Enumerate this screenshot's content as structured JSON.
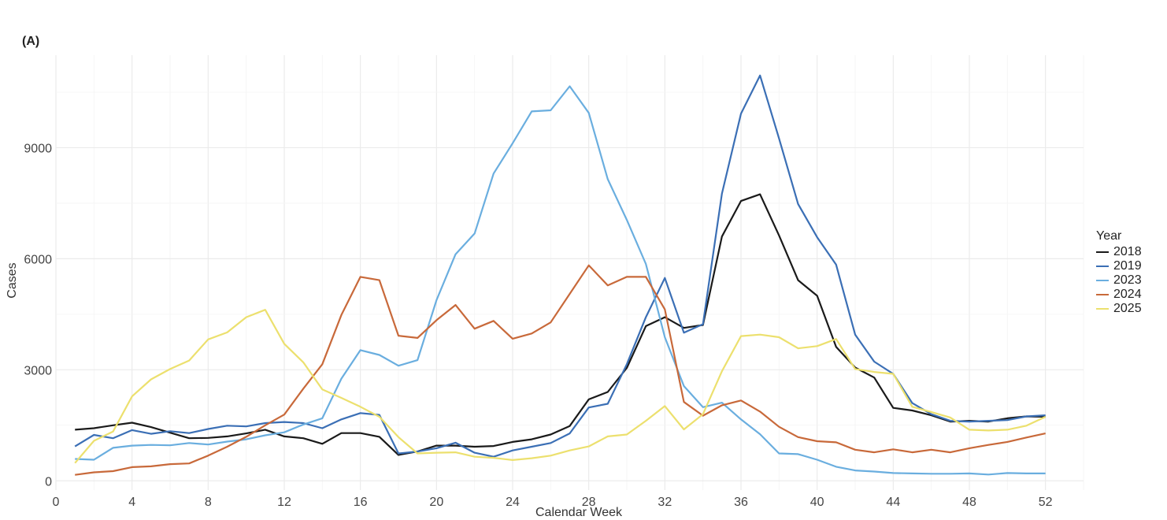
{
  "chart_data": {
    "type": "line",
    "panel_label": "(A)",
    "xlabel": "Calendar Week",
    "ylabel": "Cases",
    "xlim": [
      0,
      54
    ],
    "ylim": [
      -250,
      11500
    ],
    "xticks": [
      0,
      4,
      8,
      12,
      16,
      20,
      24,
      28,
      32,
      36,
      40,
      44,
      48,
      52
    ],
    "yticks": [
      0,
      3000,
      6000,
      9000
    ],
    "grid": true,
    "legend": {
      "title": "Year",
      "placement": "right"
    },
    "x": [
      1,
      2,
      3,
      4,
      5,
      6,
      7,
      8,
      9,
      10,
      11,
      12,
      13,
      14,
      15,
      16,
      17,
      18,
      19,
      20,
      21,
      22,
      23,
      24,
      25,
      26,
      27,
      28,
      29,
      30,
      31,
      32,
      33,
      34,
      35,
      36,
      37,
      38,
      39,
      40,
      41,
      42,
      43,
      44,
      45,
      46,
      47,
      48,
      49,
      50,
      51,
      52
    ],
    "series": [
      {
        "name": "2018",
        "color": "#1a1a1a",
        "values": [
          1380,
          1420,
          1500,
          1570,
          1450,
          1300,
          1150,
          1160,
          1200,
          1280,
          1380,
          1200,
          1150,
          1000,
          1290,
          1290,
          1190,
          700,
          790,
          950,
          950,
          920,
          940,
          1050,
          1120,
          1250,
          1480,
          2200,
          2400,
          3050,
          4180,
          4420,
          4130,
          4210,
          6600,
          7560,
          7740,
          6630,
          5420,
          5000,
          3620,
          3060,
          2790,
          1970,
          1900,
          1770,
          1600,
          1620,
          1600,
          1690,
          1740,
          1730
        ]
      },
      {
        "name": "2019",
        "color": "#3b6fb5",
        "values": [
          930,
          1240,
          1150,
          1370,
          1270,
          1340,
          1290,
          1400,
          1490,
          1470,
          1560,
          1590,
          1560,
          1420,
          1660,
          1830,
          1780,
          740,
          790,
          880,
          1030,
          760,
          650,
          820,
          920,
          1020,
          1280,
          1980,
          2080,
          3150,
          4420,
          5480,
          4000,
          4230,
          7760,
          9920,
          10950,
          9250,
          7480,
          6580,
          5840,
          3950,
          3220,
          2890,
          2100,
          1800,
          1620,
          1600,
          1620,
          1640,
          1740,
          1770
        ]
      },
      {
        "name": "2023",
        "color": "#6aaedf",
        "values": [
          590,
          570,
          890,
          950,
          970,
          960,
          1020,
          980,
          1060,
          1120,
          1230,
          1310,
          1520,
          1690,
          2760,
          3530,
          3400,
          3110,
          3260,
          4880,
          6120,
          6680,
          8300,
          9120,
          9980,
          10010,
          10660,
          9940,
          8150,
          7050,
          5860,
          3880,
          2560,
          1990,
          2110,
          1660,
          1260,
          740,
          720,
          570,
          380,
          280,
          250,
          210,
          200,
          190,
          190,
          200,
          170,
          210,
          200,
          200
        ]
      },
      {
        "name": "2024",
        "color": "#c8693a",
        "values": [
          160,
          230,
          260,
          370,
          390,
          450,
          470,
          680,
          920,
          1190,
          1500,
          1790,
          2490,
          3150,
          4480,
          5510,
          5420,
          3920,
          3860,
          4340,
          4750,
          4110,
          4320,
          3840,
          3980,
          4280,
          5050,
          5820,
          5280,
          5510,
          5510,
          4630,
          2130,
          1760,
          2040,
          2170,
          1870,
          1460,
          1180,
          1070,
          1040,
          840,
          770,
          850,
          770,
          840,
          770,
          880,
          970,
          1050,
          1170,
          1280
        ]
      },
      {
        "name": "2025",
        "color": "#ece06e",
        "values": [
          480,
          1080,
          1330,
          2280,
          2740,
          3020,
          3250,
          3820,
          4010,
          4420,
          4620,
          3700,
          3200,
          2470,
          2240,
          2000,
          1730,
          1180,
          740,
          760,
          770,
          650,
          620,
          560,
          610,
          680,
          820,
          930,
          1200,
          1250,
          1620,
          2020,
          1390,
          1800,
          2960,
          3910,
          3950,
          3880,
          3580,
          3640,
          3830,
          3020,
          2940,
          2890,
          2000,
          1860,
          1710,
          1380,
          1360,
          1380,
          1490,
          1730
        ]
      }
    ]
  }
}
